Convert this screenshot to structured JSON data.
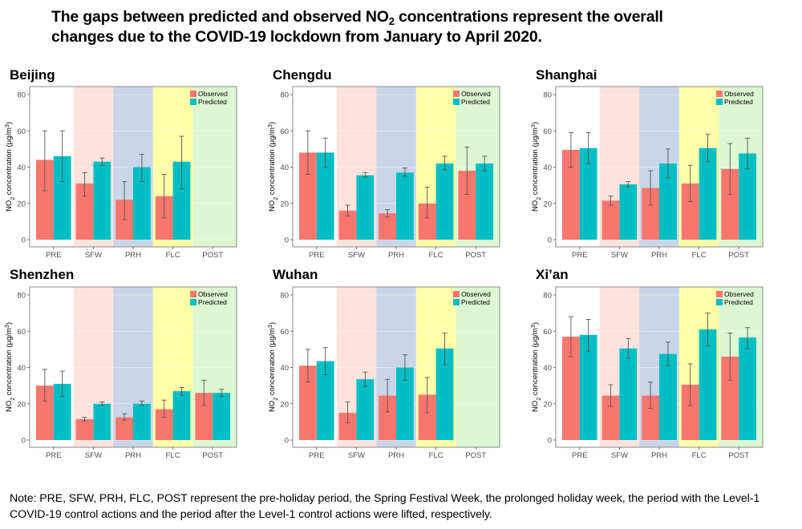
{
  "title": {
    "line1_pre": "The gaps between predicted and observed NO",
    "line1_sub": "2",
    "line1_post": " concentrations represent the overall",
    "line2": "changes due to the COVID-19 lockdown from January to April 2020."
  },
  "note": "Note: PRE, SFW, PRH, FLC, POST represent the pre-holiday period, the Spring Festival Week, the prolonged holiday week, the period with the Level-1 COVID-19 control actions and the period after the Level-1 control actions were lifted, respectively.",
  "colors": {
    "observed": "#F8766D",
    "predicted": "#00BFC4",
    "period_backgrounds": [
      "#ffffff",
      "#fde3de",
      "#c9d5e8",
      "#ffffa8",
      "#dcf7d2"
    ]
  },
  "chart_data": [
    {
      "type": "bar",
      "title": "Beijing",
      "categories": [
        "PRE",
        "SFW",
        "PRH",
        "FLC",
        "POST"
      ],
      "ylabel": "NO2 concentration (μg/m3)",
      "ylim": [
        0,
        80
      ],
      "yticks": [
        0,
        20,
        40,
        60,
        80
      ],
      "legend": [
        "Observed",
        "Predicted"
      ],
      "legend_position": "top-right",
      "series": [
        {
          "name": "Observed",
          "values": [
            44,
            31,
            22,
            24,
            null
          ],
          "err_low": [
            27,
            24,
            11,
            12,
            null
          ],
          "err_high": [
            60,
            37,
            32,
            36,
            null
          ]
        },
        {
          "name": "Predicted",
          "values": [
            46,
            43,
            40,
            43,
            null
          ],
          "err_low": [
            32,
            41,
            32,
            28,
            null
          ],
          "err_high": [
            60,
            45,
            47,
            57,
            null
          ]
        }
      ]
    },
    {
      "type": "bar",
      "title": "Chengdu",
      "categories": [
        "PRE",
        "SFW",
        "PRH",
        "FLC",
        "POST"
      ],
      "ylabel": "NO2 concentration (μg/m3)",
      "ylim": [
        0,
        80
      ],
      "yticks": [
        0,
        20,
        40,
        60,
        80
      ],
      "legend": [
        "Observed",
        "Predicted"
      ],
      "legend_position": "top-right",
      "series": [
        {
          "name": "Observed",
          "values": [
            48,
            16,
            14.5,
            20,
            38
          ],
          "err_low": [
            36,
            13,
            12.5,
            12,
            25
          ],
          "err_high": [
            60,
            19,
            16.5,
            29,
            51
          ]
        },
        {
          "name": "Predicted",
          "values": [
            48,
            35.5,
            37,
            42,
            42
          ],
          "err_low": [
            40,
            34.5,
            35,
            38.5,
            38
          ],
          "err_high": [
            56,
            37,
            39.5,
            46,
            46
          ]
        }
      ]
    },
    {
      "type": "bar",
      "title": "Shanghai",
      "categories": [
        "PRE",
        "SFW",
        "PRH",
        "FLC",
        "POST"
      ],
      "ylabel": "NO2 concentration (μg/m3)",
      "ylim": [
        0,
        80
      ],
      "yticks": [
        0,
        20,
        40,
        60,
        80
      ],
      "legend": [
        "Observed",
        "Predicted"
      ],
      "legend_position": "top-right",
      "series": [
        {
          "name": "Observed",
          "values": [
            49.5,
            21.5,
            28.5,
            31,
            39
          ],
          "err_low": [
            40,
            19,
            19,
            21,
            25
          ],
          "err_high": [
            59,
            24,
            38,
            41,
            53
          ]
        },
        {
          "name": "Predicted",
          "values": [
            50.5,
            30.5,
            42,
            50.5,
            47.5
          ],
          "err_low": [
            42,
            29,
            34,
            43,
            39
          ],
          "err_high": [
            59,
            32,
            50,
            58,
            56
          ]
        }
      ]
    },
    {
      "type": "bar",
      "title": "Shenzhen",
      "categories": [
        "PRE",
        "SFW",
        "PRH",
        "FLC",
        "POST"
      ],
      "ylabel": "NO2 concentration (μg/m3)",
      "ylim": [
        0,
        80
      ],
      "yticks": [
        0,
        20,
        40,
        60,
        80
      ],
      "legend": [
        "Observed",
        "Predicted"
      ],
      "legend_position": "top-right",
      "series": [
        {
          "name": "Observed",
          "values": [
            30,
            11.5,
            12.5,
            17,
            26
          ],
          "err_low": [
            21.5,
            10.5,
            11,
            12.5,
            19
          ],
          "err_high": [
            39,
            12.5,
            14.5,
            22,
            33
          ]
        },
        {
          "name": "Predicted",
          "values": [
            31,
            20,
            20,
            27,
            26
          ],
          "err_low": [
            24,
            19,
            19,
            24.5,
            24
          ],
          "err_high": [
            38,
            21,
            21.5,
            29,
            28
          ]
        }
      ]
    },
    {
      "type": "bar",
      "title": "Wuhan",
      "categories": [
        "PRE",
        "SFW",
        "PRH",
        "FLC",
        "POST"
      ],
      "ylabel": "NO2 concentration (μg/m3)",
      "ylim": [
        0,
        80
      ],
      "yticks": [
        0,
        20,
        40,
        60,
        80
      ],
      "legend": [
        "Observed",
        "Predicted"
      ],
      "legend_position": "top-right",
      "series": [
        {
          "name": "Observed",
          "values": [
            41,
            15,
            24.5,
            25,
            null
          ],
          "err_low": [
            32,
            9.5,
            15.5,
            15,
            null
          ],
          "err_high": [
            50,
            21,
            33.5,
            34.5,
            null
          ]
        },
        {
          "name": "Predicted",
          "values": [
            43.5,
            33.5,
            40,
            50.5,
            null
          ],
          "err_low": [
            36,
            29.5,
            33,
            41.5,
            null
          ],
          "err_high": [
            51,
            37.5,
            47,
            59,
            null
          ]
        }
      ]
    },
    {
      "type": "bar",
      "title": "Xi’an",
      "categories": [
        "PRE",
        "SFW",
        "PRH",
        "FLC",
        "POST"
      ],
      "ylabel": "NO2 concentration (μg/m3)",
      "ylim": [
        0,
        80
      ],
      "yticks": [
        0,
        20,
        40,
        60,
        80
      ],
      "legend": [
        "Observed",
        "Predicted"
      ],
      "legend_position": "top-right",
      "series": [
        {
          "name": "Observed",
          "values": [
            57,
            24.5,
            24.5,
            30.5,
            46
          ],
          "err_low": [
            46,
            18.5,
            17.5,
            19,
            33
          ],
          "err_high": [
            68,
            30.5,
            32,
            42,
            59
          ]
        },
        {
          "name": "Predicted",
          "values": [
            58,
            50.5,
            47.5,
            61,
            56.5
          ],
          "err_low": [
            49,
            45,
            41,
            52,
            50.5
          ],
          "err_high": [
            66.5,
            56,
            54,
            70,
            62
          ]
        }
      ]
    }
  ]
}
